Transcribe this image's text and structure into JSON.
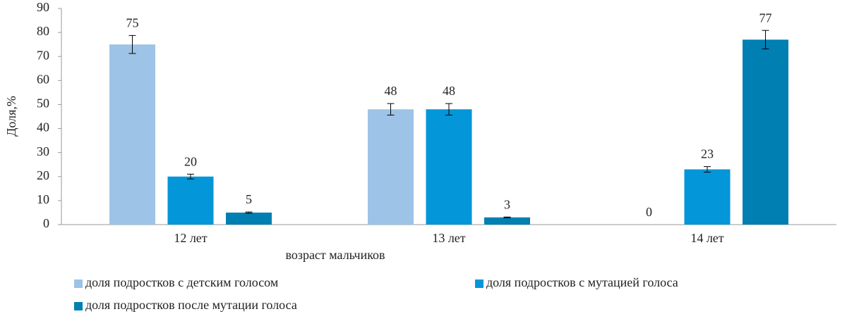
{
  "chart_data": {
    "type": "bar",
    "y_label": "Доля,%",
    "x_label": "возраст мальчиков",
    "categories": [
      "12 лет",
      "13 лет",
      "14 лет"
    ],
    "series": [
      {
        "name": "доля подростков с детским голосом",
        "color": "#9dc3e6",
        "values": [
          75,
          48,
          0
        ],
        "errors": [
          3.75,
          2.4,
          0
        ]
      },
      {
        "name": "доля подростков с мутацией голоса",
        "color": "#0396d8",
        "values": [
          20,
          48,
          23
        ],
        "errors": [
          1,
          2.4,
          1.15
        ]
      },
      {
        "name": "доля подростков после мутации голоса",
        "color": "#007fb2",
        "values": [
          5,
          3,
          77
        ],
        "errors": [
          0.25,
          0.15,
          3.85
        ]
      }
    ],
    "ylim": [
      0,
      90
    ],
    "yticks": [
      0,
      10,
      20,
      30,
      40,
      50,
      60,
      70,
      80,
      90
    ],
    "grid": false
  }
}
